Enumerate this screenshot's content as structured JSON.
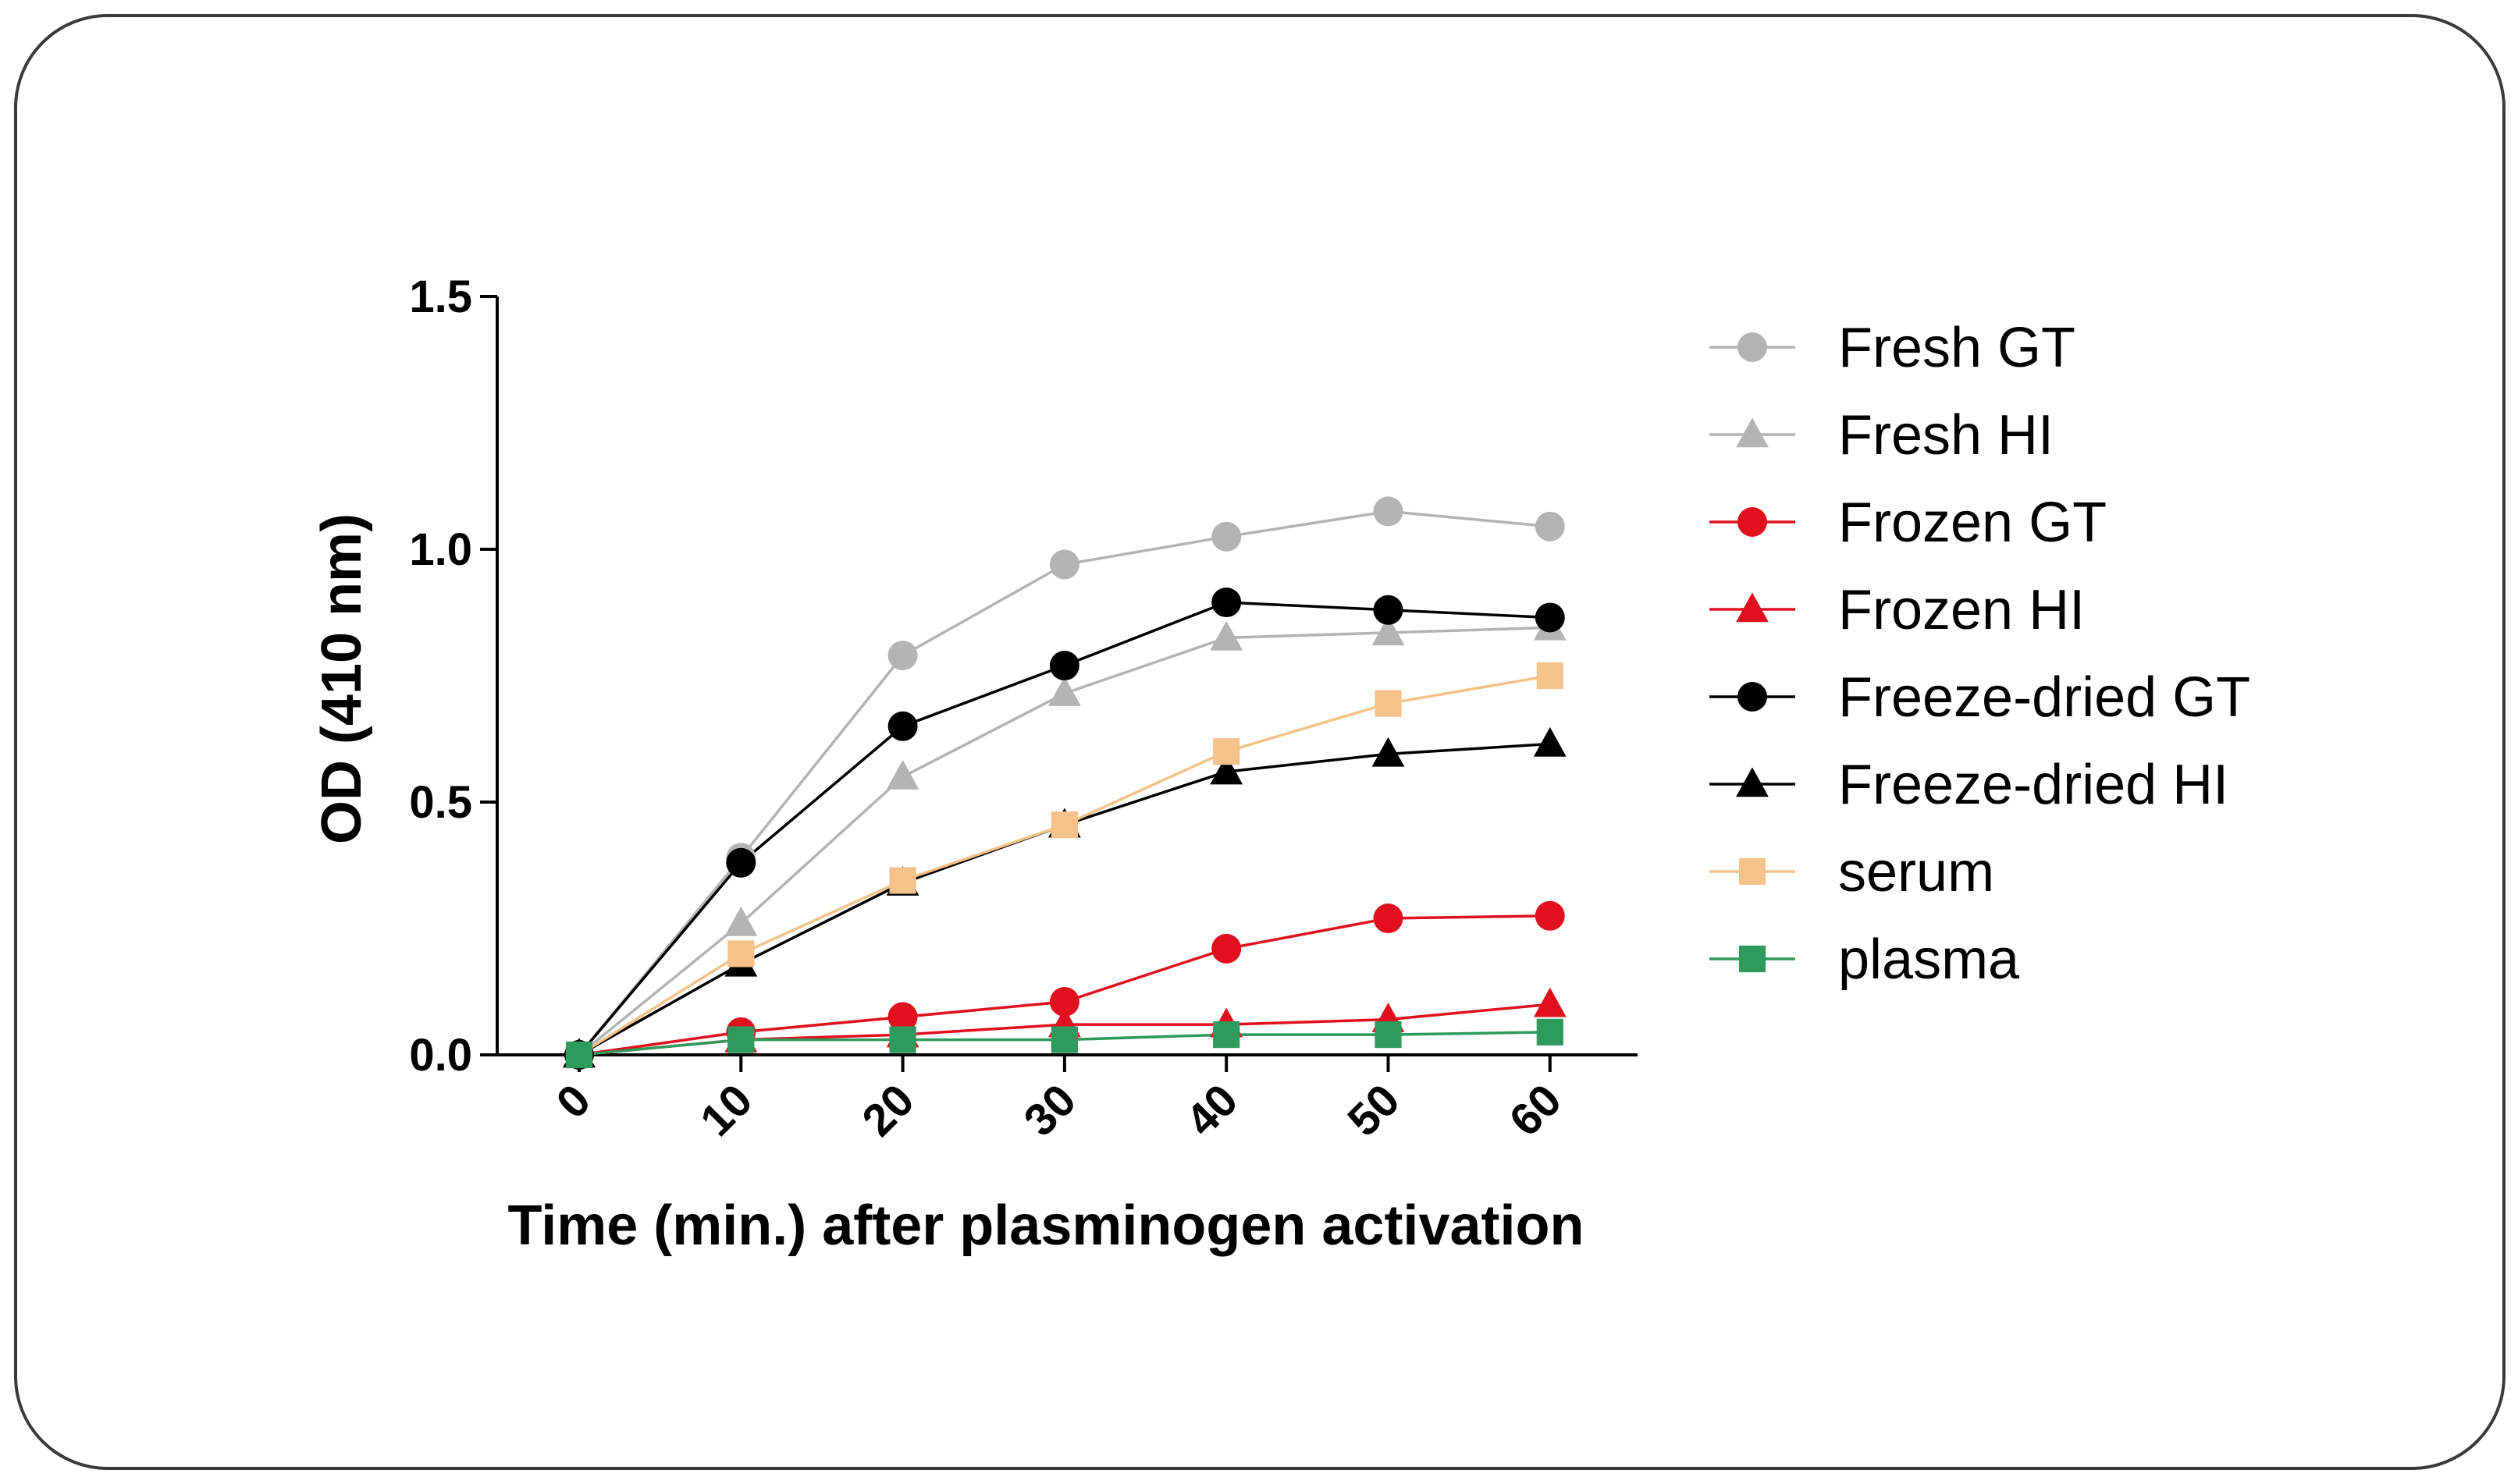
{
  "chart_data": {
    "type": "line",
    "title": "",
    "xlabel": "Time (min.) after plasminogen activation",
    "ylabel": "OD (410 nm)",
    "x": [
      0,
      10,
      20,
      30,
      40,
      50,
      60
    ],
    "x_tick_labels": [
      "0",
      "10",
      "20",
      "30",
      "40",
      "50",
      "60"
    ],
    "y_ticks": [
      0.0,
      0.5,
      1.0,
      1.5
    ],
    "y_tick_labels": [
      "0.0",
      "0.5",
      "1.0",
      "1.5"
    ],
    "ylim": [
      0,
      1.5
    ],
    "grid": false,
    "legend_position": "right",
    "series": [
      {
        "name": "Fresh GT",
        "marker": "circle",
        "color": "#b4b4b4",
        "values": [
          0.0,
          0.39,
          0.79,
          0.97,
          1.025,
          1.075,
          1.045
        ]
      },
      {
        "name": "Fresh HI",
        "marker": "triangle",
        "color": "#b4b4b4",
        "values": [
          0.0,
          0.26,
          0.55,
          0.715,
          0.825,
          0.835,
          0.845
        ]
      },
      {
        "name": "Frozen GT",
        "marker": "circle",
        "color": "#e0101e",
        "values": [
          0.0,
          0.045,
          0.075,
          0.105,
          0.21,
          0.27,
          0.275
        ]
      },
      {
        "name": "Frozen HI",
        "marker": "triangle",
        "color": "#e0101e",
        "values": [
          0.0,
          0.03,
          0.04,
          0.06,
          0.06,
          0.07,
          0.1
        ]
      },
      {
        "name": "Freeze-dried GT",
        "marker": "circle",
        "color": "#000000",
        "values": [
          0.0,
          0.38,
          0.65,
          0.77,
          0.895,
          0.88,
          0.865
        ]
      },
      {
        "name": "Freeze-dried HI",
        "marker": "triangle",
        "color": "#000000",
        "values": [
          0.0,
          0.18,
          0.34,
          0.455,
          0.56,
          0.595,
          0.615
        ]
      },
      {
        "name": "serum",
        "marker": "square",
        "color": "#f5c38a",
        "values": [
          0.0,
          0.2,
          0.345,
          0.455,
          0.6,
          0.695,
          0.75
        ]
      },
      {
        "name": "plasma",
        "marker": "square",
        "color": "#2e9a5c",
        "values": [
          0.0,
          0.03,
          0.03,
          0.03,
          0.04,
          0.04,
          0.045
        ]
      }
    ]
  }
}
